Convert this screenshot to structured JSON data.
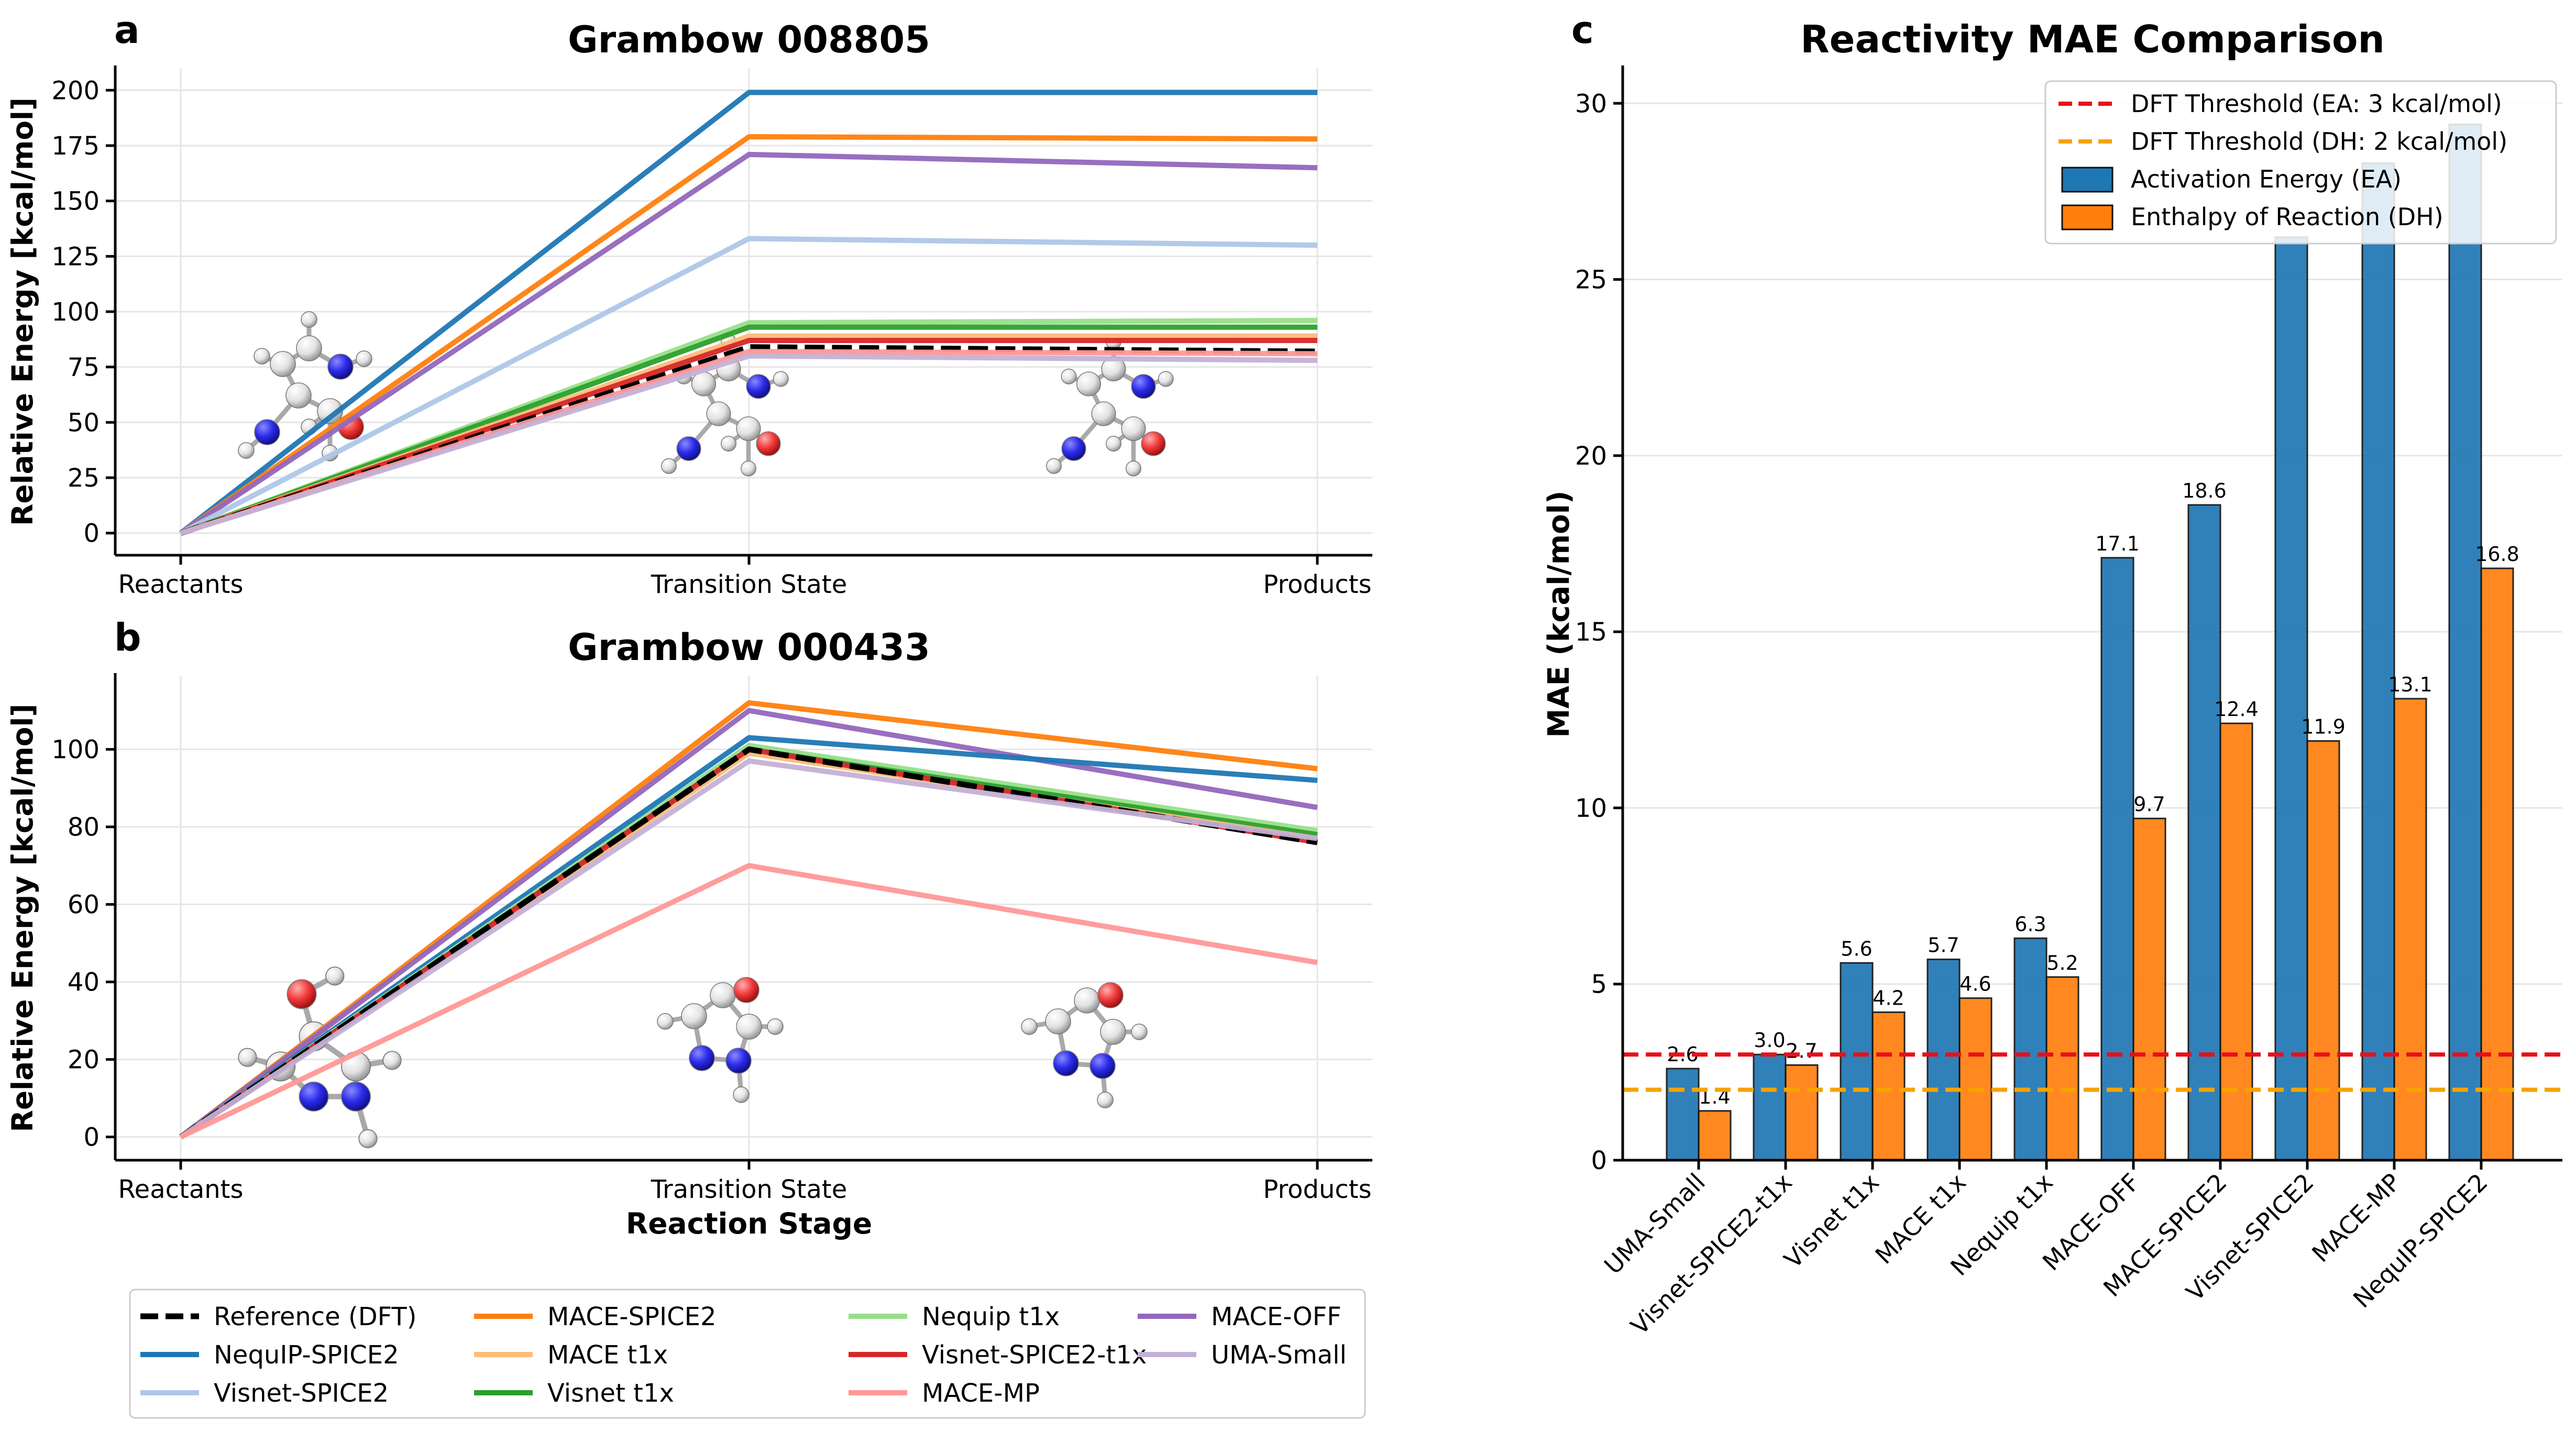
{
  "chart_data": [
    {
      "panel_letter": "a",
      "type": "line",
      "title": "Grambow 008805",
      "ylabel": "Relative Energy [kcal/mol]",
      "xlabel": "",
      "categories": [
        "Reactants",
        "Transition State",
        "Products"
      ],
      "ylim": [
        -10,
        210
      ],
      "yticks": [
        0,
        25,
        50,
        75,
        100,
        125,
        150,
        175,
        200
      ],
      "grid": true,
      "series": [
        {
          "name": "NequIP-SPICE2",
          "color": "#1f77b4",
          "values": [
            0,
            199,
            199
          ]
        },
        {
          "name": "MACE-SPICE2",
          "color": "#ff7f0e",
          "values": [
            0,
            179,
            178
          ]
        },
        {
          "name": "MACE-OFF",
          "color": "#9467bd",
          "values": [
            0,
            171,
            165
          ]
        },
        {
          "name": "Visnet-SPICE2",
          "color": "#aec7e8",
          "values": [
            0,
            133,
            130
          ]
        },
        {
          "name": "Nequip t1x",
          "color": "#98df8a",
          "values": [
            0,
            95,
            96
          ]
        },
        {
          "name": "Visnet t1x",
          "color": "#2ca02c",
          "values": [
            0,
            93,
            93
          ]
        },
        {
          "name": "MACE t1x",
          "color": "#ffbb78",
          "values": [
            0,
            89,
            89
          ]
        },
        {
          "name": "Visnet-SPICE2-t1x",
          "color": "#d62728",
          "values": [
            0,
            87,
            87
          ]
        },
        {
          "name": "Reference (DFT)",
          "color": "#000000",
          "dashed": true,
          "values": [
            0,
            84,
            82
          ]
        },
        {
          "name": "MACE-MP",
          "color": "#ff9896",
          "values": [
            0,
            82,
            81
          ]
        },
        {
          "name": "UMA-Small",
          "color": "#c5b0d5",
          "values": [
            0,
            80,
            78
          ]
        }
      ]
    },
    {
      "panel_letter": "b",
      "type": "line",
      "title": "Grambow 000433",
      "ylabel": "Relative Energy [kcal/mol]",
      "xlabel": "Reaction Stage",
      "categories": [
        "Reactants",
        "Transition State",
        "Products"
      ],
      "ylim": [
        -6,
        119
      ],
      "yticks": [
        0,
        20,
        40,
        60,
        80,
        100
      ],
      "grid": true,
      "series": [
        {
          "name": "MACE-SPICE2",
          "color": "#ff7f0e",
          "values": [
            0,
            112,
            95
          ]
        },
        {
          "name": "MACE-OFF",
          "color": "#9467bd",
          "values": [
            0,
            110,
            85
          ]
        },
        {
          "name": "NequIP-SPICE2",
          "color": "#1f77b4",
          "values": [
            0,
            103,
            92
          ]
        },
        {
          "name": "Visnet-SPICE2",
          "color": "#aec7e8",
          "values": [
            0,
            101,
            77
          ]
        },
        {
          "name": "Nequip t1x",
          "color": "#98df8a",
          "values": [
            0,
            101,
            79
          ]
        },
        {
          "name": "Visnet t1x",
          "color": "#2ca02c",
          "values": [
            0,
            100,
            78
          ]
        },
        {
          "name": "MACE t1x",
          "color": "#ffbb78",
          "values": [
            0,
            99,
            77
          ]
        },
        {
          "name": "Visnet-SPICE2-t1x",
          "color": "#d62728",
          "values": [
            0,
            100,
            76
          ]
        },
        {
          "name": "Reference (DFT)",
          "color": "#000000",
          "dashed": true,
          "values": [
            0,
            100,
            76
          ]
        },
        {
          "name": "UMA-Small",
          "color": "#c5b0d5",
          "values": [
            0,
            97,
            77
          ]
        },
        {
          "name": "MACE-MP",
          "color": "#ff9896",
          "values": [
            0,
            70,
            45
          ]
        }
      ]
    },
    {
      "panel_letter": "c",
      "type": "bar",
      "title": "Reactivity MAE Comparison",
      "ylabel": "MAE (kcal/mol)",
      "xlabel": "",
      "categories": [
        "UMA-Small",
        "Visnet-SPICE2-t1x",
        "Visnet t1x",
        "MACE t1x",
        "Nequip t1x",
        "MACE-OFF",
        "MACE-SPICE2",
        "Visnet-SPICE2",
        "MACE-MP",
        "NequIP-SPICE2"
      ],
      "ylim": [
        0,
        31
      ],
      "yticks": [
        0,
        5,
        10,
        15,
        20,
        25,
        30
      ],
      "grid": true,
      "series": [
        {
          "name": "Activation Energy (EA)",
          "color": "#1f77b4",
          "values": [
            2.6,
            3.0,
            5.6,
            5.7,
            6.3,
            17.1,
            18.6,
            26.2,
            28.3,
            29.4
          ],
          "labels": [
            "2.6",
            "3.0",
            "5.6",
            "5.7",
            "6.3",
            "17.1",
            "18.6",
            "",
            "",
            ""
          ]
        },
        {
          "name": "Enthalpy of Reaction (DH)",
          "color": "#ff7f0e",
          "values": [
            1.4,
            2.7,
            4.2,
            4.6,
            5.2,
            9.7,
            12.4,
            11.9,
            13.1,
            16.8
          ],
          "labels": [
            "1.4",
            "2.7",
            "4.2",
            "4.6",
            "5.2",
            "9.7",
            "12.4",
            "11.9",
            "13.1",
            "16.8"
          ]
        }
      ],
      "thresholds": [
        {
          "name": "DFT Threshold (EA: 3 kcal/mol)",
          "value": 3,
          "color": "#e8101a"
        },
        {
          "name": "DFT Threshold (DH: 2 kcal/mol)",
          "value": 2,
          "color": "#f5a300"
        }
      ],
      "legend_position": "top-right"
    }
  ],
  "legend": {
    "items": [
      {
        "name": "Reference (DFT)",
        "color": "#000000",
        "dashed": true
      },
      {
        "name": "NequIP-SPICE2",
        "color": "#1f77b4"
      },
      {
        "name": "Visnet-SPICE2",
        "color": "#aec7e8"
      },
      {
        "name": "MACE-SPICE2",
        "color": "#ff7f0e"
      },
      {
        "name": "MACE t1x",
        "color": "#ffbb78"
      },
      {
        "name": "Visnet t1x",
        "color": "#2ca02c"
      },
      {
        "name": "Nequip t1x",
        "color": "#98df8a"
      },
      {
        "name": "Visnet-SPICE2-t1x",
        "color": "#d62728"
      },
      {
        "name": "MACE-MP",
        "color": "#ff9896"
      },
      {
        "name": "MACE-OFF",
        "color": "#9467bd"
      },
      {
        "name": "UMA-Small",
        "color": "#c5b0d5"
      }
    ]
  },
  "molecules": [
    {
      "panel": "a",
      "role": "reactants",
      "icon": "molecule-illustration"
    },
    {
      "panel": "a",
      "role": "transition-state",
      "icon": "molecule-illustration"
    },
    {
      "panel": "a",
      "role": "products",
      "icon": "molecule-illustration"
    },
    {
      "panel": "b",
      "role": "reactants",
      "icon": "molecule-illustration"
    },
    {
      "panel": "b",
      "role": "transition-state",
      "icon": "molecule-illustration"
    },
    {
      "panel": "b",
      "role": "products",
      "icon": "molecule-illustration"
    }
  ]
}
